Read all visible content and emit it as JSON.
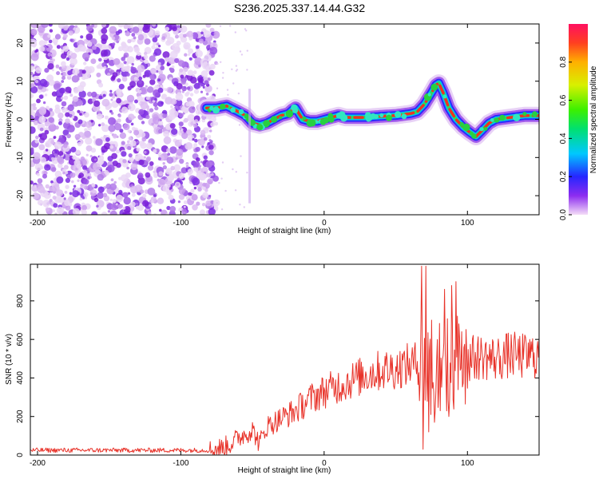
{
  "title": "S236.2025.337.14.44.G32",
  "chart_data": [
    {
      "type": "heatmap",
      "xlabel": "Height of straight line (km)",
      "ylabel": "Frequency (Hz)",
      "xlim": [
        -205,
        150
      ],
      "ylim": [
        -25,
        25
      ],
      "xticks": [
        -200,
        -100,
        0,
        100
      ],
      "yticks": [
        -20,
        -10,
        0,
        10,
        20
      ],
      "noise_region_x": [
        -205,
        -75
      ],
      "ridge": {
        "x": [
          -82,
          -75,
          -68,
          -60,
          -55,
          -50,
          -45,
          -40,
          -35,
          -30,
          -25,
          -22,
          -20,
          -15,
          -10,
          -5,
          0,
          5,
          10,
          15,
          20,
          30,
          40,
          50,
          60,
          65,
          70,
          75,
          78,
          80,
          83,
          87,
          92,
          97,
          102,
          106,
          110,
          115,
          120,
          130,
          140,
          150
        ],
        "y": [
          3,
          3,
          3.5,
          2,
          1,
          -1,
          -1.5,
          -1,
          0,
          1,
          1.5,
          2.5,
          3,
          0,
          -0.5,
          -0.5,
          0,
          0.5,
          1,
          0.5,
          0.5,
          0.5,
          0.8,
          1,
          1.5,
          2,
          4,
          7,
          9,
          9.5,
          7,
          3,
          0,
          -2,
          -3.5,
          -4.5,
          -3,
          -1,
          0,
          0.5,
          1,
          1
        ]
      },
      "colorbar": {
        "label": "Normalized spectral amplitude",
        "range": [
          0,
          1
        ],
        "ticks": [
          "0.0",
          "0.2",
          "0.4",
          "0.6",
          "0.8"
        ],
        "tick_values": [
          0,
          0.2,
          0.4,
          0.6,
          0.8
        ]
      }
    },
    {
      "type": "line",
      "xlabel": "Height of straight line (km)",
      "ylabel": "SNR (10 * v/v)",
      "xlim": [
        -205,
        150
      ],
      "ylim": [
        0,
        990
      ],
      "xticks": [
        -200,
        -100,
        0,
        100
      ],
      "yticks": [
        0,
        200,
        400,
        600,
        800
      ],
      "series": [
        {
          "name": "SNR",
          "color": "#e8332a",
          "envelope_x": [
            -205,
            -80,
            -70,
            -65,
            -60,
            -55,
            -50,
            -45,
            -40,
            -35,
            -30,
            -20,
            -10,
            0,
            10,
            20,
            30,
            40,
            50,
            60,
            65,
            70,
            75,
            80,
            85,
            90,
            95,
            100,
            110,
            120,
            130,
            140,
            150
          ],
          "envelope_y": [
            25,
            25,
            40,
            60,
            90,
            110,
            130,
            60,
            150,
            170,
            190,
            230,
            290,
            330,
            360,
            390,
            420,
            440,
            450,
            470,
            480,
            470,
            450,
            440,
            460,
            480,
            490,
            500,
            510,
            500,
            520,
            510,
            520
          ],
          "spikes": [
            {
              "x": 68,
              "y": 980
            },
            {
              "x": 71,
              "y": 980
            },
            {
              "x": 75,
              "y": 700
            },
            {
              "x": 79,
              "y": 600
            },
            {
              "x": 84,
              "y": 860
            },
            {
              "x": 89,
              "y": 880
            },
            {
              "x": 92,
              "y": 900
            },
            {
              "x": 96,
              "y": 640
            },
            {
              "x": 69,
              "y": 30
            },
            {
              "x": 73,
              "y": 120
            },
            {
              "x": 77,
              "y": 170
            },
            {
              "x": 81,
              "y": 230
            },
            {
              "x": 87,
              "y": 200
            }
          ]
        }
      ]
    }
  ]
}
